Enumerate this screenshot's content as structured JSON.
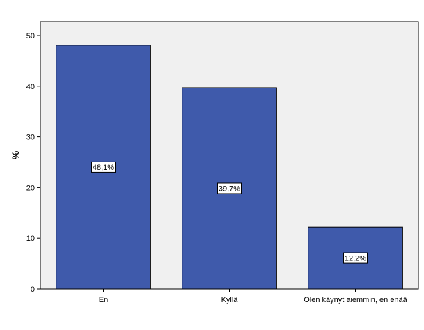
{
  "chart_data": {
    "type": "bar",
    "categories": [
      "En",
      "Kyllä",
      "Olen käynyt aiemmin, en enää"
    ],
    "values": [
      48.1,
      39.7,
      12.2
    ],
    "data_labels": [
      "48,1%",
      "39,7%",
      "12,2%"
    ],
    "title": "",
    "xlabel": "",
    "ylabel": "%",
    "ylim": [
      0,
      50
    ],
    "yticks": [
      0,
      10,
      20,
      30,
      40,
      50
    ],
    "ytick_labels": [
      "0",
      "10",
      "20",
      "30",
      "40",
      "50"
    ],
    "grid": false,
    "legend": "none",
    "colors": {
      "bar_fill": "#3f5aab",
      "bar_stroke": "#000000",
      "plot_background": "#f0f0f0",
      "page_background": "#ffffff"
    }
  }
}
